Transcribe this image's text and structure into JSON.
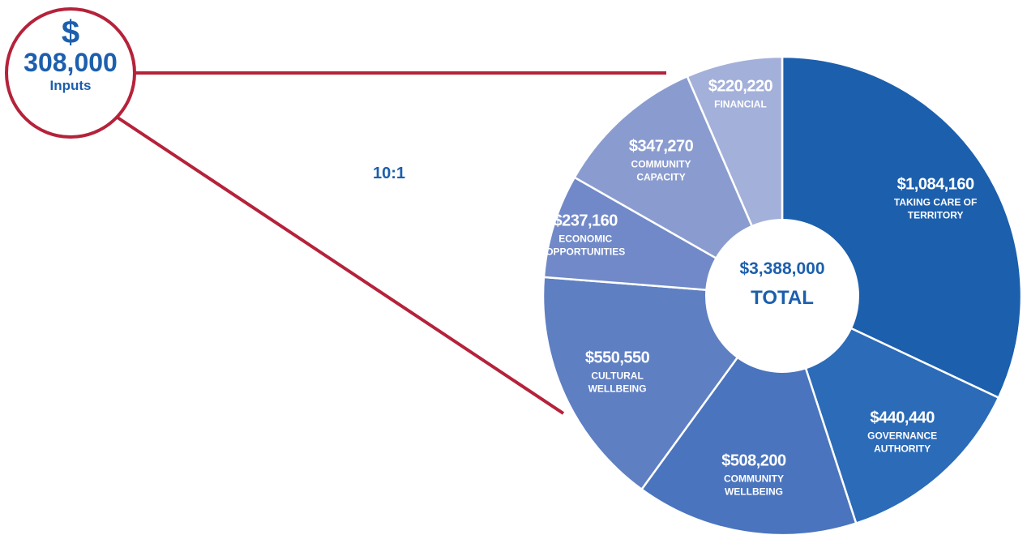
{
  "chart_data": {
    "type": "donut",
    "categories": [
      "TAKING CARE OF TERRITORY",
      "GOVERNANCE AUTHORITY",
      "COMMUNITY WELLBEING",
      "CULTURAL WELLBEING",
      "ECONOMIC OPPORTUNITIES",
      "COMMUNITY CAPACITY",
      "FINANCIAL"
    ],
    "values": [
      1084160,
      440440,
      508200,
      550550,
      237160,
      347270,
      220220
    ],
    "value_labels": [
      "$1,084,160",
      "$440,440",
      "$508,200",
      "$550,550",
      "$237,160",
      "$347,270",
      "$220,220"
    ],
    "colors": [
      "#1c5fad",
      "#2b6bb8",
      "#4a74bd",
      "#5f7fc3",
      "#7189c8",
      "#8a9ccf",
      "#a3b0da"
    ],
    "center_label": "$3,388,000",
    "center_sublabel": "TOTAL",
    "inputs_symbol": "$",
    "inputs_amount": "308,000",
    "inputs_caption": "Inputs",
    "ratio": "10:1"
  }
}
